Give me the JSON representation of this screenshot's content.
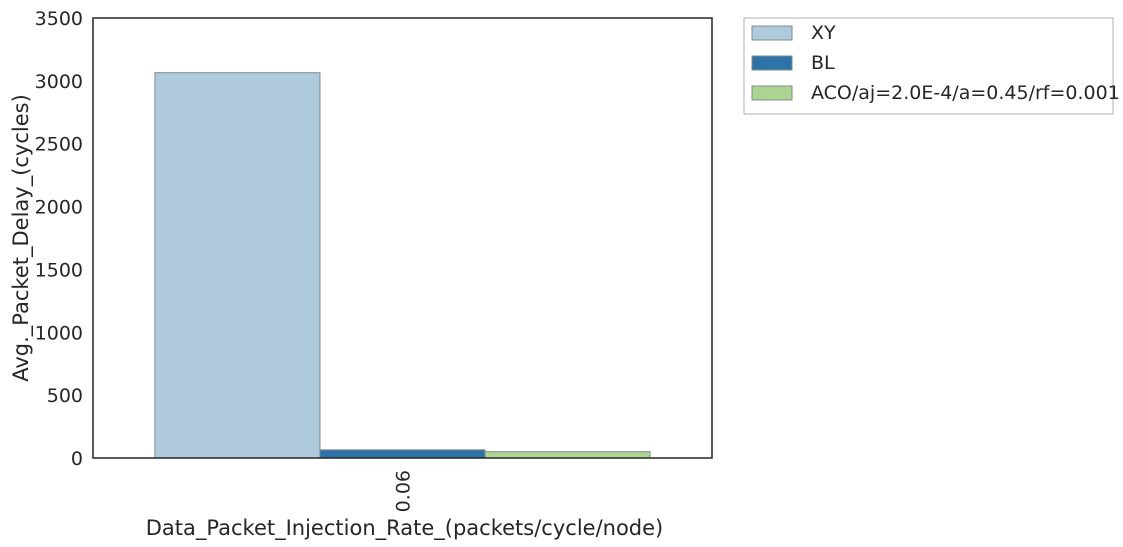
{
  "chart_data": {
    "type": "bar",
    "title": "",
    "xlabel": "Data_Packet_Injection_Rate_(packets/cycle/node)",
    "ylabel": "Avg._Packet_Delay_(cycles)",
    "categories": [
      "0.06"
    ],
    "ylim": [
      0,
      3500
    ],
    "yticks": [
      0,
      500,
      1000,
      1500,
      2000,
      2500,
      3000,
      3500
    ],
    "grid": false,
    "legend_position": "outside-top-right",
    "series": [
      {
        "name": "XY",
        "values": [
          3065
        ],
        "color": "#afcadc"
      },
      {
        "name": "BL",
        "values": [
          65
        ],
        "color": "#2f72a8"
      },
      {
        "name": "ACO/aj=2.0E-4/a=0.45/rf=0.001",
        "values": [
          50
        ],
        "color": "#aed491"
      }
    ]
  }
}
